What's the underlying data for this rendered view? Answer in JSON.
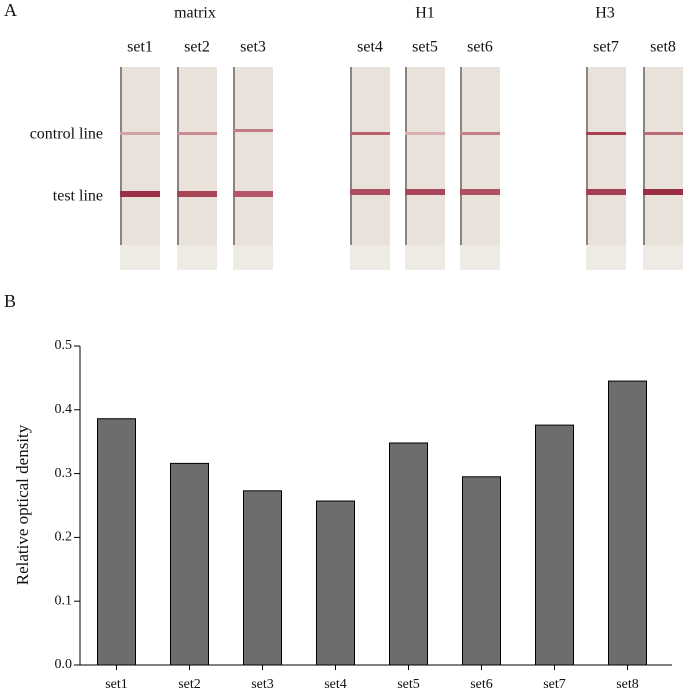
{
  "panel_a": {
    "letter": "A",
    "groups": [
      "matrix",
      "H1",
      "H3"
    ],
    "sets": [
      "set1",
      "set2",
      "set3",
      "set4",
      "set5",
      "set6",
      "set7",
      "set8"
    ],
    "row_labels": [
      "control line",
      "test line"
    ]
  },
  "panel_b_letter": "B",
  "chart_data": {
    "type": "bar",
    "y_label": "Relative optical density",
    "categories": [
      "set1",
      "set2",
      "set3",
      "set4",
      "set5",
      "set6",
      "set7",
      "set8"
    ],
    "values": [
      0.386,
      0.316,
      0.273,
      0.257,
      0.348,
      0.295,
      0.376,
      0.445
    ],
    "color": "#6d6d6d",
    "ylim": [
      0,
      0.5
    ],
    "yticks": [
      {
        "value": 0,
        "label": "0.0"
      },
      0.1,
      0.2,
      0.3,
      0.4,
      0.5
    ],
    "grid": false
  }
}
